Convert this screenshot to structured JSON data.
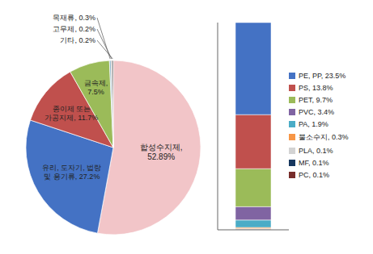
{
  "chart_data": [
    {
      "type": "pie",
      "categories": [
        "합성수지제,\n52.89%",
        "유리, 도자기, 법랑\n및 용기류, 27.2%",
        "종이제 또는\n가공지제, 11.7%",
        "금속제,\n7.5%",
        "목재류, 0.3%",
        "고무제, 0.2%",
        "기타, 0.2%"
      ],
      "values": [
        52.89,
        27.2,
        11.7,
        7.5,
        0.3,
        0.2,
        0.2
      ],
      "colors": [
        "#f2c5c8",
        "#4472c4",
        "#c0504d",
        "#9bbb59",
        "#8ab4c8",
        "#7f6f6f",
        "#3a3a3a"
      ]
    },
    {
      "type": "bar",
      "stacked": true,
      "categories": [
        null
      ],
      "series": [
        {
          "name": "PE, PP, 23.5%",
          "color": "#4472c4",
          "values": [
            23.5
          ]
        },
        {
          "name": "PS, 13.8%",
          "color": "#c0504d",
          "values": [
            13.8
          ]
        },
        {
          "name": "PET, 9.7%",
          "color": "#9bbb59",
          "values": [
            9.7
          ]
        },
        {
          "name": "PVC, 3.4%",
          "color": "#8064a2",
          "values": [
            3.4
          ]
        },
        {
          "name": "PA, 1.9%",
          "color": "#4bacc6",
          "values": [
            1.9
          ]
        },
        {
          "name": "불소수지, 0.3%",
          "color": "#f79646",
          "values": [
            0.3
          ]
        },
        {
          "name": "PLA, 0.1%",
          "color": "#d3d3d3",
          "values": [
            0.1
          ]
        },
        {
          "name": "MF, 0.1%",
          "color": "#17375e",
          "values": [
            0.1
          ]
        },
        {
          "name": "PC, 0.1%",
          "color": "#772c2a",
          "values": [
            0.1
          ]
        }
      ],
      "ylim": [
        0,
        52.9
      ],
      "tick_labels": false,
      "legend": "right"
    }
  ]
}
